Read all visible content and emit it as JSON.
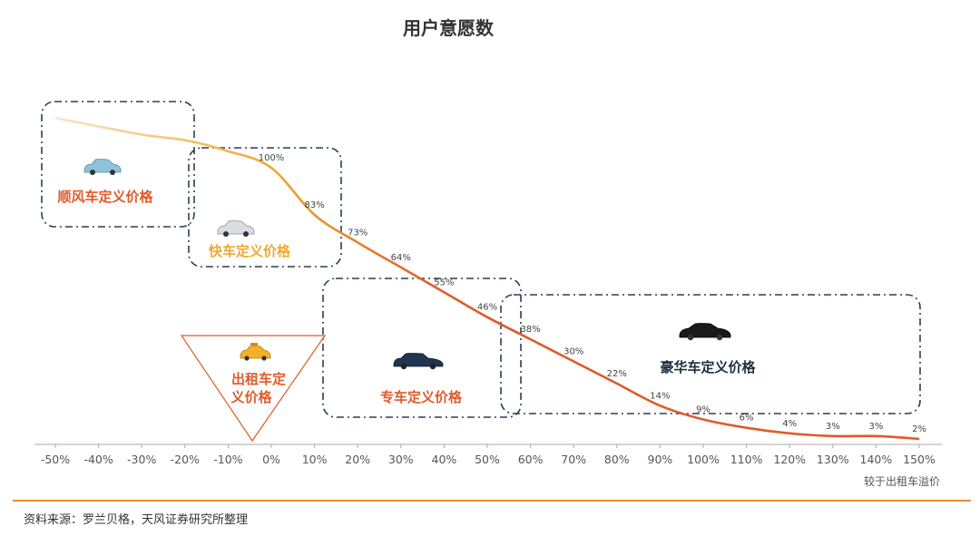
{
  "chart_data": {
    "type": "line",
    "title": "用户意愿数",
    "x_unit_label": "较于出租车溢价",
    "x_ticks": [
      "-50%",
      "-40%",
      "-30%",
      "-20%",
      "-10%",
      "0%",
      "10%",
      "20%",
      "30%",
      "40%",
      "50%",
      "60%",
      "70%",
      "80%",
      "90%",
      "100%",
      "110%",
      "120%",
      "130%",
      "140%",
      "150%"
    ],
    "series": [
      {
        "x": [
          -50,
          -30,
          -20,
          -10,
          0,
          10,
          20,
          30,
          40,
          50,
          60,
          70,
          80,
          90,
          100,
          110,
          120,
          130,
          140,
          150
        ],
        "y": [
          118,
          112,
          110,
          106,
          100,
          83,
          73,
          64,
          55,
          46,
          38,
          30,
          22,
          14,
          9,
          6,
          4,
          3,
          3,
          2
        ]
      }
    ],
    "data_labels": [
      "100%",
      "83%",
      "73%",
      "64%",
      "55%",
      "46%",
      "38%",
      "30%",
      "22%",
      "14%",
      "9%",
      "6%",
      "4%",
      "3%",
      "3%",
      "2%"
    ],
    "data_label_x": [
      0,
      10,
      20,
      30,
      40,
      50,
      60,
      70,
      80,
      90,
      100,
      110,
      120,
      130,
      140,
      150
    ],
    "zones": [
      {
        "label": "顺风车定义价格",
        "color": "#e05a2a",
        "icon": "car-light-blue-icon"
      },
      {
        "label": "快车定义价格",
        "color": "#f0a830",
        "icon": "car-silver-icon"
      },
      {
        "label": "出租车定义价格",
        "line1": "出租车定",
        "line2": "义价格",
        "color": "#e05a2a",
        "icon": "taxi-icon"
      },
      {
        "label": "专车定义价格",
        "color": "#e05a2a",
        "icon": "car-dark-blue-icon"
      },
      {
        "label": "豪华车定义价格",
        "color": "#1f2d3d",
        "icon": "car-black-icon"
      }
    ],
    "colors": {
      "line_start": "#f5dcb0",
      "line_mid": "#f0a830",
      "line_end": "#e05a2a",
      "axis": "#aaaaaa",
      "zone_border": "#2c3e55"
    }
  },
  "source": "资料来源：罗兰贝格，天风证券研究所整理"
}
